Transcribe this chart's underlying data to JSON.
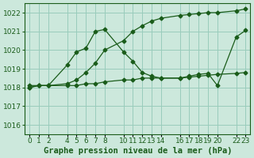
{
  "background_color": "#cce8dc",
  "grid_color": "#99ccbb",
  "line_color": "#1a5c1a",
  "title": "Graphe pression niveau de la mer (hPa)",
  "ylabel_ticks": [
    1016,
    1017,
    1018,
    1019,
    1020,
    1021,
    1022
  ],
  "xtick_labels": [
    "0",
    "1",
    "2",
    "4",
    "5",
    "6",
    "7",
    "8",
    "10",
    "11",
    "12",
    "13",
    "14",
    "16",
    "17",
    "18",
    "19",
    "20",
    "22",
    "23"
  ],
  "xtick_positions": [
    0,
    1,
    2,
    4,
    5,
    6,
    7,
    8,
    10,
    11,
    12,
    13,
    14,
    16,
    17,
    18,
    19,
    20,
    22,
    23
  ],
  "series1_x": [
    0,
    1,
    2,
    4,
    5,
    6,
    7,
    8,
    10,
    11,
    12,
    13,
    14,
    16,
    17,
    18,
    19,
    20,
    22,
    23
  ],
  "series1_y": [
    1018.0,
    1018.1,
    1018.1,
    1018.1,
    1018.1,
    1018.2,
    1018.2,
    1018.3,
    1018.4,
    1018.4,
    1018.5,
    1018.5,
    1018.5,
    1018.5,
    1018.55,
    1018.6,
    1018.65,
    1018.7,
    1018.75,
    1018.8
  ],
  "series2_x": [
    0,
    1,
    2,
    4,
    5,
    6,
    7,
    8,
    10,
    11,
    12,
    13,
    14,
    16,
    17,
    18,
    19,
    20,
    22,
    23
  ],
  "series2_y": [
    1018.1,
    1018.1,
    1018.1,
    1019.2,
    1019.9,
    1020.1,
    1021.0,
    1021.1,
    1019.9,
    1019.4,
    1018.8,
    1018.6,
    1018.5,
    1018.5,
    1018.6,
    1018.7,
    1018.75,
    1018.1,
    1020.7,
    1021.05
  ],
  "series3_x": [
    0,
    1,
    2,
    4,
    5,
    6,
    7,
    8,
    10,
    11,
    12,
    13,
    14,
    16,
    17,
    18,
    19,
    20,
    22,
    23
  ],
  "series3_y": [
    1018.0,
    1018.1,
    1018.1,
    1018.2,
    1018.4,
    1018.8,
    1019.3,
    1020.0,
    1020.5,
    1021.0,
    1021.3,
    1021.55,
    1021.7,
    1021.85,
    1021.9,
    1021.95,
    1022.0,
    1022.0,
    1022.1,
    1022.2
  ],
  "ylim": [
    1015.5,
    1022.5
  ],
  "xlim": [
    -0.5,
    23.5
  ],
  "title_fontsize": 7.5,
  "tick_fontsize": 6.5
}
